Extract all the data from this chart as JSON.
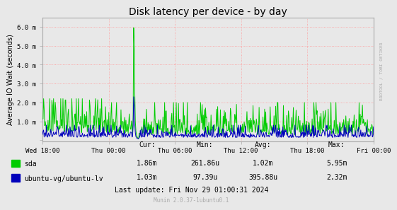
{
  "title": "Disk latency per device - by day",
  "ylabel": "Average IO Wait (seconds)",
  "background_color": "#e8e8e8",
  "plot_bg_color": "#e8e8e8",
  "grid_color": "#ff9999",
  "sda_color": "#00cc00",
  "lv_color": "#0000bb",
  "ytick_labels": [
    "",
    "1.0 m",
    "2.0 m",
    "3.0 m",
    "4.0 m",
    "5.0 m",
    "6.0 m"
  ],
  "xtick_labels": [
    "Wed 18:00",
    "Thu 00:00",
    "Thu 06:00",
    "Thu 12:00",
    "Thu 18:00",
    "Fri 00:00"
  ],
  "legend_entries": [
    "sda",
    "ubuntu-vg/ubuntu-lv"
  ],
  "cur_sda": "1.86m",
  "min_sda": "261.86u",
  "avg_sda": "1.02m",
  "max_sda": "5.95m",
  "cur_lv": "1.03m",
  "min_lv": "97.39u",
  "avg_lv": "395.88u",
  "max_lv": "2.32m",
  "last_update": "Last update: Fri Nov 29 01:00:31 2024",
  "munin_version": "Munin 2.0.37-1ubuntu0.1",
  "right_label": "RRDTOOL / TOBI OETIKER"
}
